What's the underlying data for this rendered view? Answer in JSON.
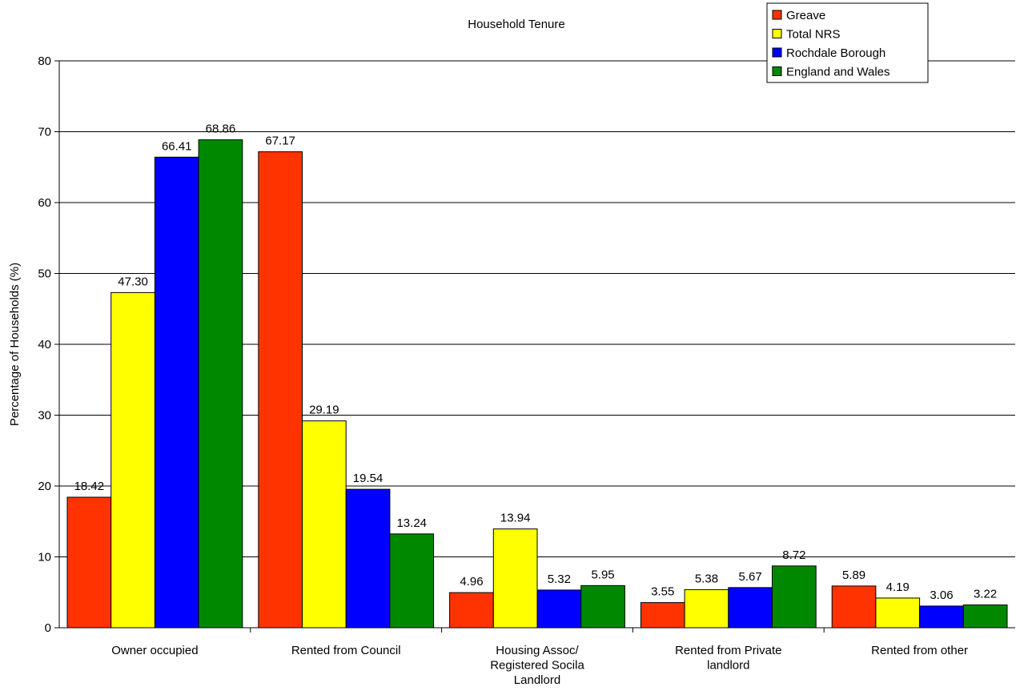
{
  "chart_data": {
    "type": "bar",
    "title": "Household Tenure",
    "xlabel": "",
    "ylabel": "Percentage of Households (%)",
    "ylim": [
      0,
      80
    ],
    "yticks": [
      0,
      10,
      20,
      30,
      40,
      50,
      60,
      70,
      80
    ],
    "grid": true,
    "legend_position": "top-right",
    "categories": [
      [
        "Owner occupied"
      ],
      [
        "Rented from Council"
      ],
      [
        "Housing Assoc/",
        "Registered Socila",
        "Landlord"
      ],
      [
        "Rented from Private",
        "landlord"
      ],
      [
        "Rented from other"
      ]
    ],
    "series": [
      {
        "name": "Greave",
        "color": "#FF3300",
        "values": [
          18.42,
          67.17,
          4.96,
          3.55,
          5.89
        ],
        "labels": [
          "18.42",
          "67.17",
          "4.96",
          "3.55",
          "5.89"
        ]
      },
      {
        "name": "Total NRS",
        "color": "#FFFF00",
        "values": [
          47.3,
          29.19,
          13.94,
          5.38,
          4.19
        ],
        "labels": [
          "47.30",
          "29.19",
          "13.94",
          "5.38",
          "4.19"
        ]
      },
      {
        "name": "Rochdale Borough",
        "color": "#0000FF",
        "values": [
          66.41,
          19.54,
          5.32,
          5.67,
          3.06
        ],
        "labels": [
          "66.41",
          "19.54",
          "5.32",
          "5.67",
          "3.06"
        ]
      },
      {
        "name": "England and Wales",
        "color": "#008800",
        "values": [
          68.86,
          13.24,
          5.95,
          8.72,
          3.22
        ],
        "labels": [
          "68.86",
          "13.24",
          "5.95",
          "8.72",
          "3.22"
        ]
      }
    ]
  }
}
